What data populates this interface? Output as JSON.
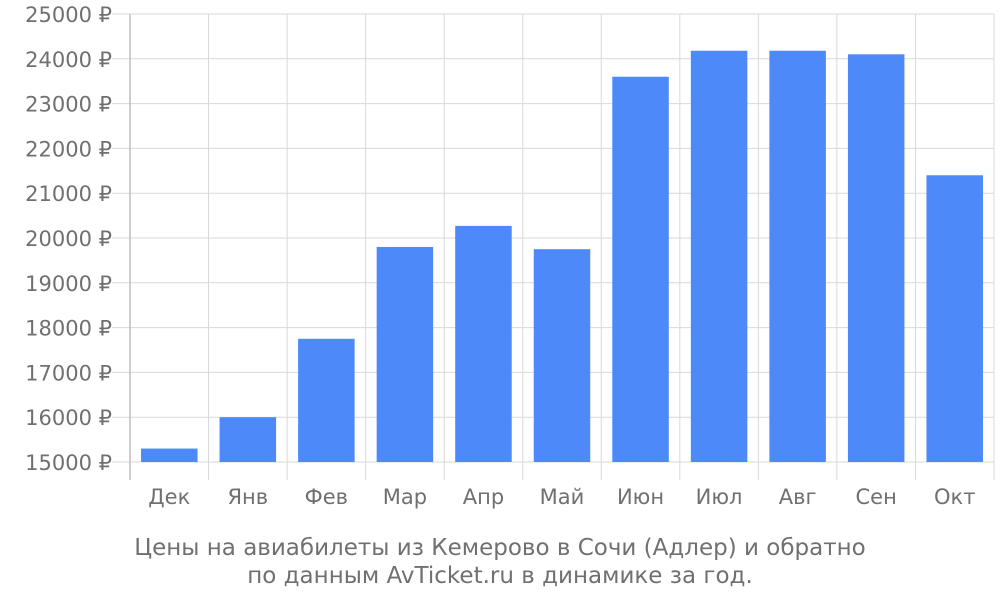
{
  "chart_data": {
    "type": "bar",
    "categories": [
      "Дек",
      "Янв",
      "Фев",
      "Мар",
      "Апр",
      "Май",
      "Июн",
      "Июл",
      "Авг",
      "Сен",
      "Окт"
    ],
    "values": [
      15300,
      16000,
      17750,
      19800,
      20270,
      19750,
      23600,
      24180,
      24180,
      24100,
      21400
    ],
    "y_tick_values": [
      15000,
      16000,
      17000,
      18000,
      19000,
      20000,
      21000,
      22000,
      23000,
      24000,
      25000
    ],
    "y_tick_labels": [
      "15000 ₽",
      "16000 ₽",
      "17000 ₽",
      "18000 ₽",
      "19000 ₽",
      "20000 ₽",
      "21000 ₽",
      "22000 ₽",
      "23000 ₽",
      "24000 ₽",
      "25000 ₽"
    ],
    "ylim": [
      15000,
      25000
    ],
    "grid": true,
    "title": "",
    "xlabel": "",
    "ylabel": ""
  },
  "caption": {
    "line1": "Цены на авиабилеты из Кемерово в Сочи (Адлер) и обратно",
    "line2": "по данным AvTicket.ru в динамике за год."
  },
  "colors": {
    "bar": "#4d89f9",
    "grid": "#d9d9d9",
    "axis": "#bdbdbd",
    "text": "#707070"
  }
}
